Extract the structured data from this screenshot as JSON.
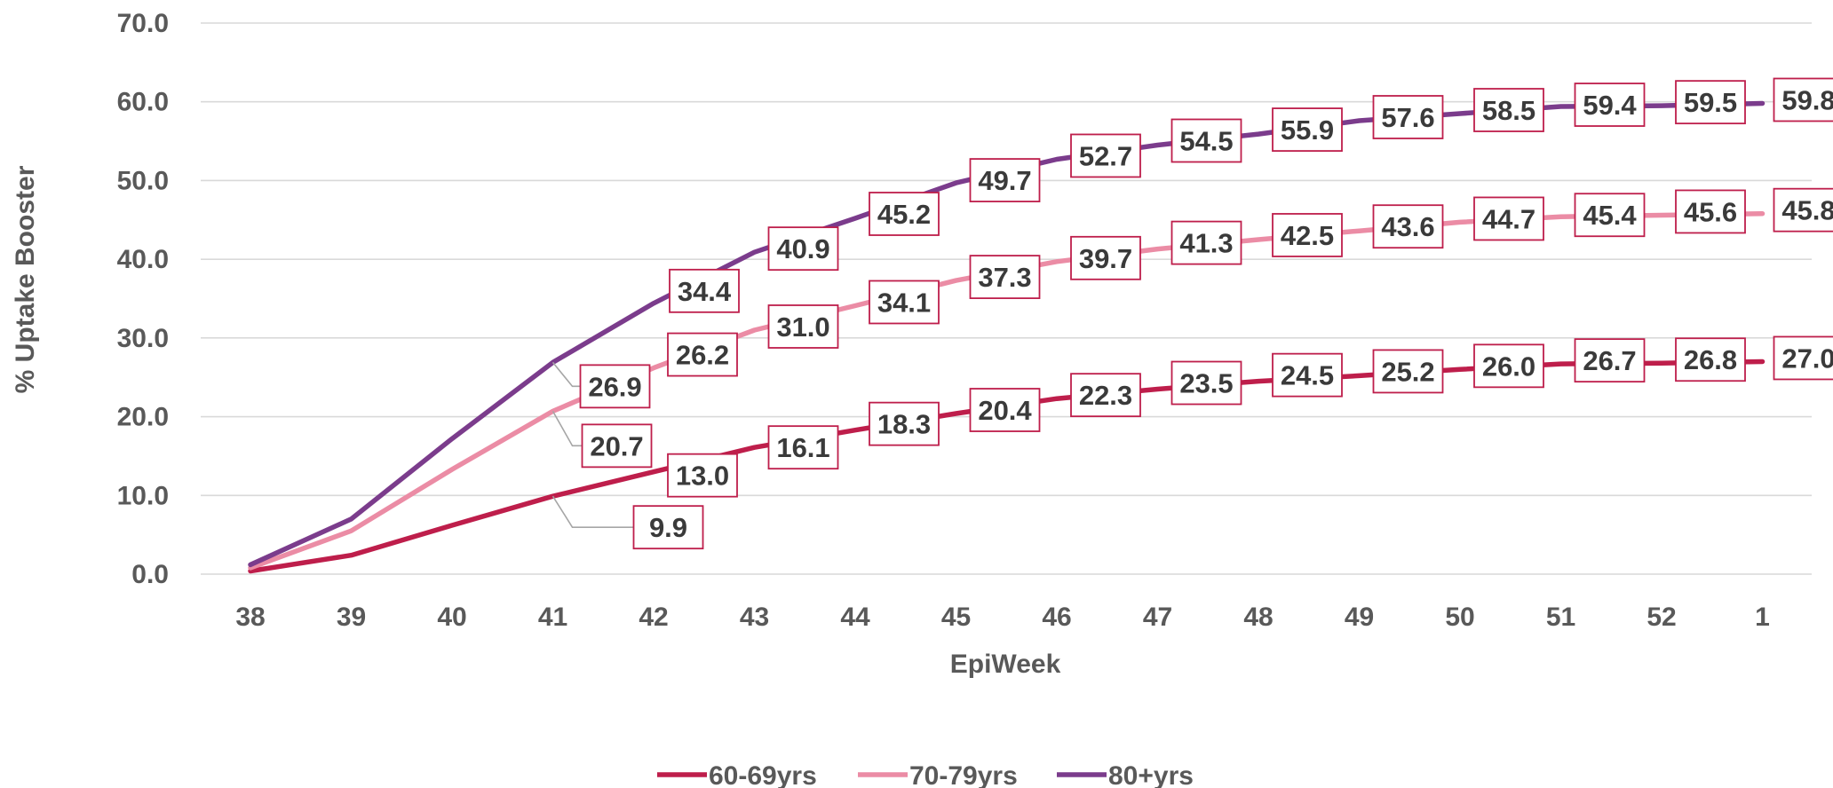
{
  "chart_data": {
    "type": "line",
    "xlabel": "EpiWeek",
    "ylabel": "% Uptake Booster",
    "ylim": [
      0,
      70
    ],
    "yticks": [
      "0.0",
      "10.0",
      "20.0",
      "30.0",
      "40.0",
      "50.0",
      "60.0",
      "70.0"
    ],
    "categories": [
      "38",
      "39",
      "40",
      "41",
      "42",
      "43",
      "44",
      "45",
      "46",
      "47",
      "48",
      "49",
      "50",
      "51",
      "52",
      "1"
    ],
    "grid": true,
    "legend_position": "bottom",
    "series": [
      {
        "name": "60-69yrs",
        "color": "#be1e4b",
        "values": [
          0.4,
          2.4,
          6.2,
          9.9,
          13.0,
          16.1,
          18.3,
          20.4,
          22.3,
          23.5,
          24.5,
          25.2,
          26.0,
          26.7,
          26.8,
          27.0
        ],
        "labels": [
          "",
          "",
          "",
          "9.9",
          "13.0",
          "16.1",
          "18.3",
          "20.4",
          "22.3",
          "23.5",
          "24.5",
          "25.2",
          "26.0",
          "26.7",
          "26.8",
          "27.0"
        ]
      },
      {
        "name": "70-79yrs",
        "color": "#eb8ca5",
        "values": [
          0.8,
          5.5,
          13.3,
          20.7,
          26.2,
          31.0,
          34.1,
          37.3,
          39.7,
          41.3,
          42.5,
          43.6,
          44.7,
          45.4,
          45.6,
          45.8
        ],
        "labels": [
          "",
          "",
          "",
          "20.7",
          "26.2",
          "31.0",
          "34.1",
          "37.3",
          "39.7",
          "41.3",
          "42.5",
          "43.6",
          "44.7",
          "45.4",
          "45.6",
          "45.8"
        ]
      },
      {
        "name": "80+yrs",
        "color": "#7b3c8c",
        "values": [
          1.2,
          7.0,
          17.2,
          26.9,
          34.4,
          40.9,
          45.2,
          49.7,
          52.7,
          54.5,
          55.9,
          57.6,
          58.5,
          59.4,
          59.5,
          59.8
        ],
        "labels": [
          "",
          "",
          "",
          "26.9",
          "34.4",
          "40.9",
          "45.2",
          "49.7",
          "52.7",
          "54.5",
          "55.9",
          "57.6",
          "58.5",
          "59.4",
          "59.5",
          "59.8"
        ]
      }
    ]
  }
}
